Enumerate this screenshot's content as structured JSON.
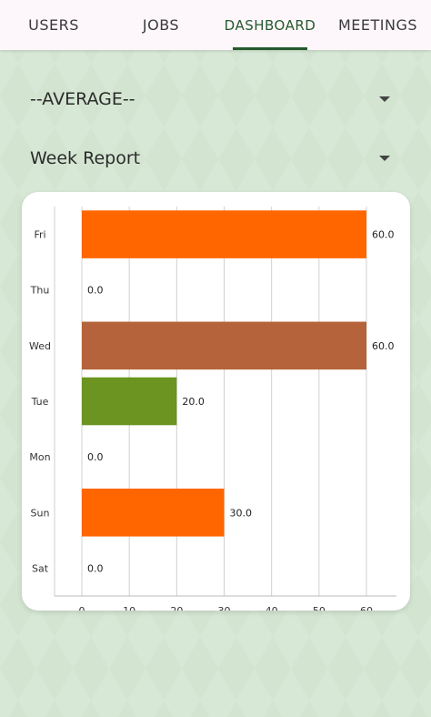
{
  "tabs": [
    {
      "label": "USERS",
      "active": false
    },
    {
      "label": "JOBS",
      "active": false
    },
    {
      "label": "DASHBOARD",
      "active": true
    },
    {
      "label": "MEETINGS",
      "active": false
    }
  ],
  "filters": {
    "average_label": "--AVERAGE--",
    "report_label": "Week Report"
  },
  "colors": {
    "accent": "#245a2d",
    "orange": "#ff6600",
    "brown": "#b5633a",
    "green": "#6b9421"
  },
  "chart_data": {
    "type": "bar",
    "orientation": "horizontal",
    "categories": [
      "Fri",
      "Thu",
      "Wed",
      "Tue",
      "Mon",
      "Sun",
      "Sat"
    ],
    "values": [
      60.0,
      0.0,
      60.0,
      20.0,
      0.0,
      30.0,
      0.0
    ],
    "value_labels": [
      "60.0",
      "0.0",
      "60.0",
      "20.0",
      "0.0",
      "30.0",
      "0.0"
    ],
    "bar_colors": [
      "#ff6600",
      "#ff6600",
      "#b5633a",
      "#6b9421",
      "#ff6600",
      "#ff6600",
      "#ff6600"
    ],
    "xlim": [
      0,
      60
    ],
    "x_ticks": [
      "0",
      "10",
      "20",
      "30",
      "40",
      "50",
      "60"
    ],
    "grid": true,
    "title": "",
    "xlabel": "",
    "ylabel": ""
  }
}
